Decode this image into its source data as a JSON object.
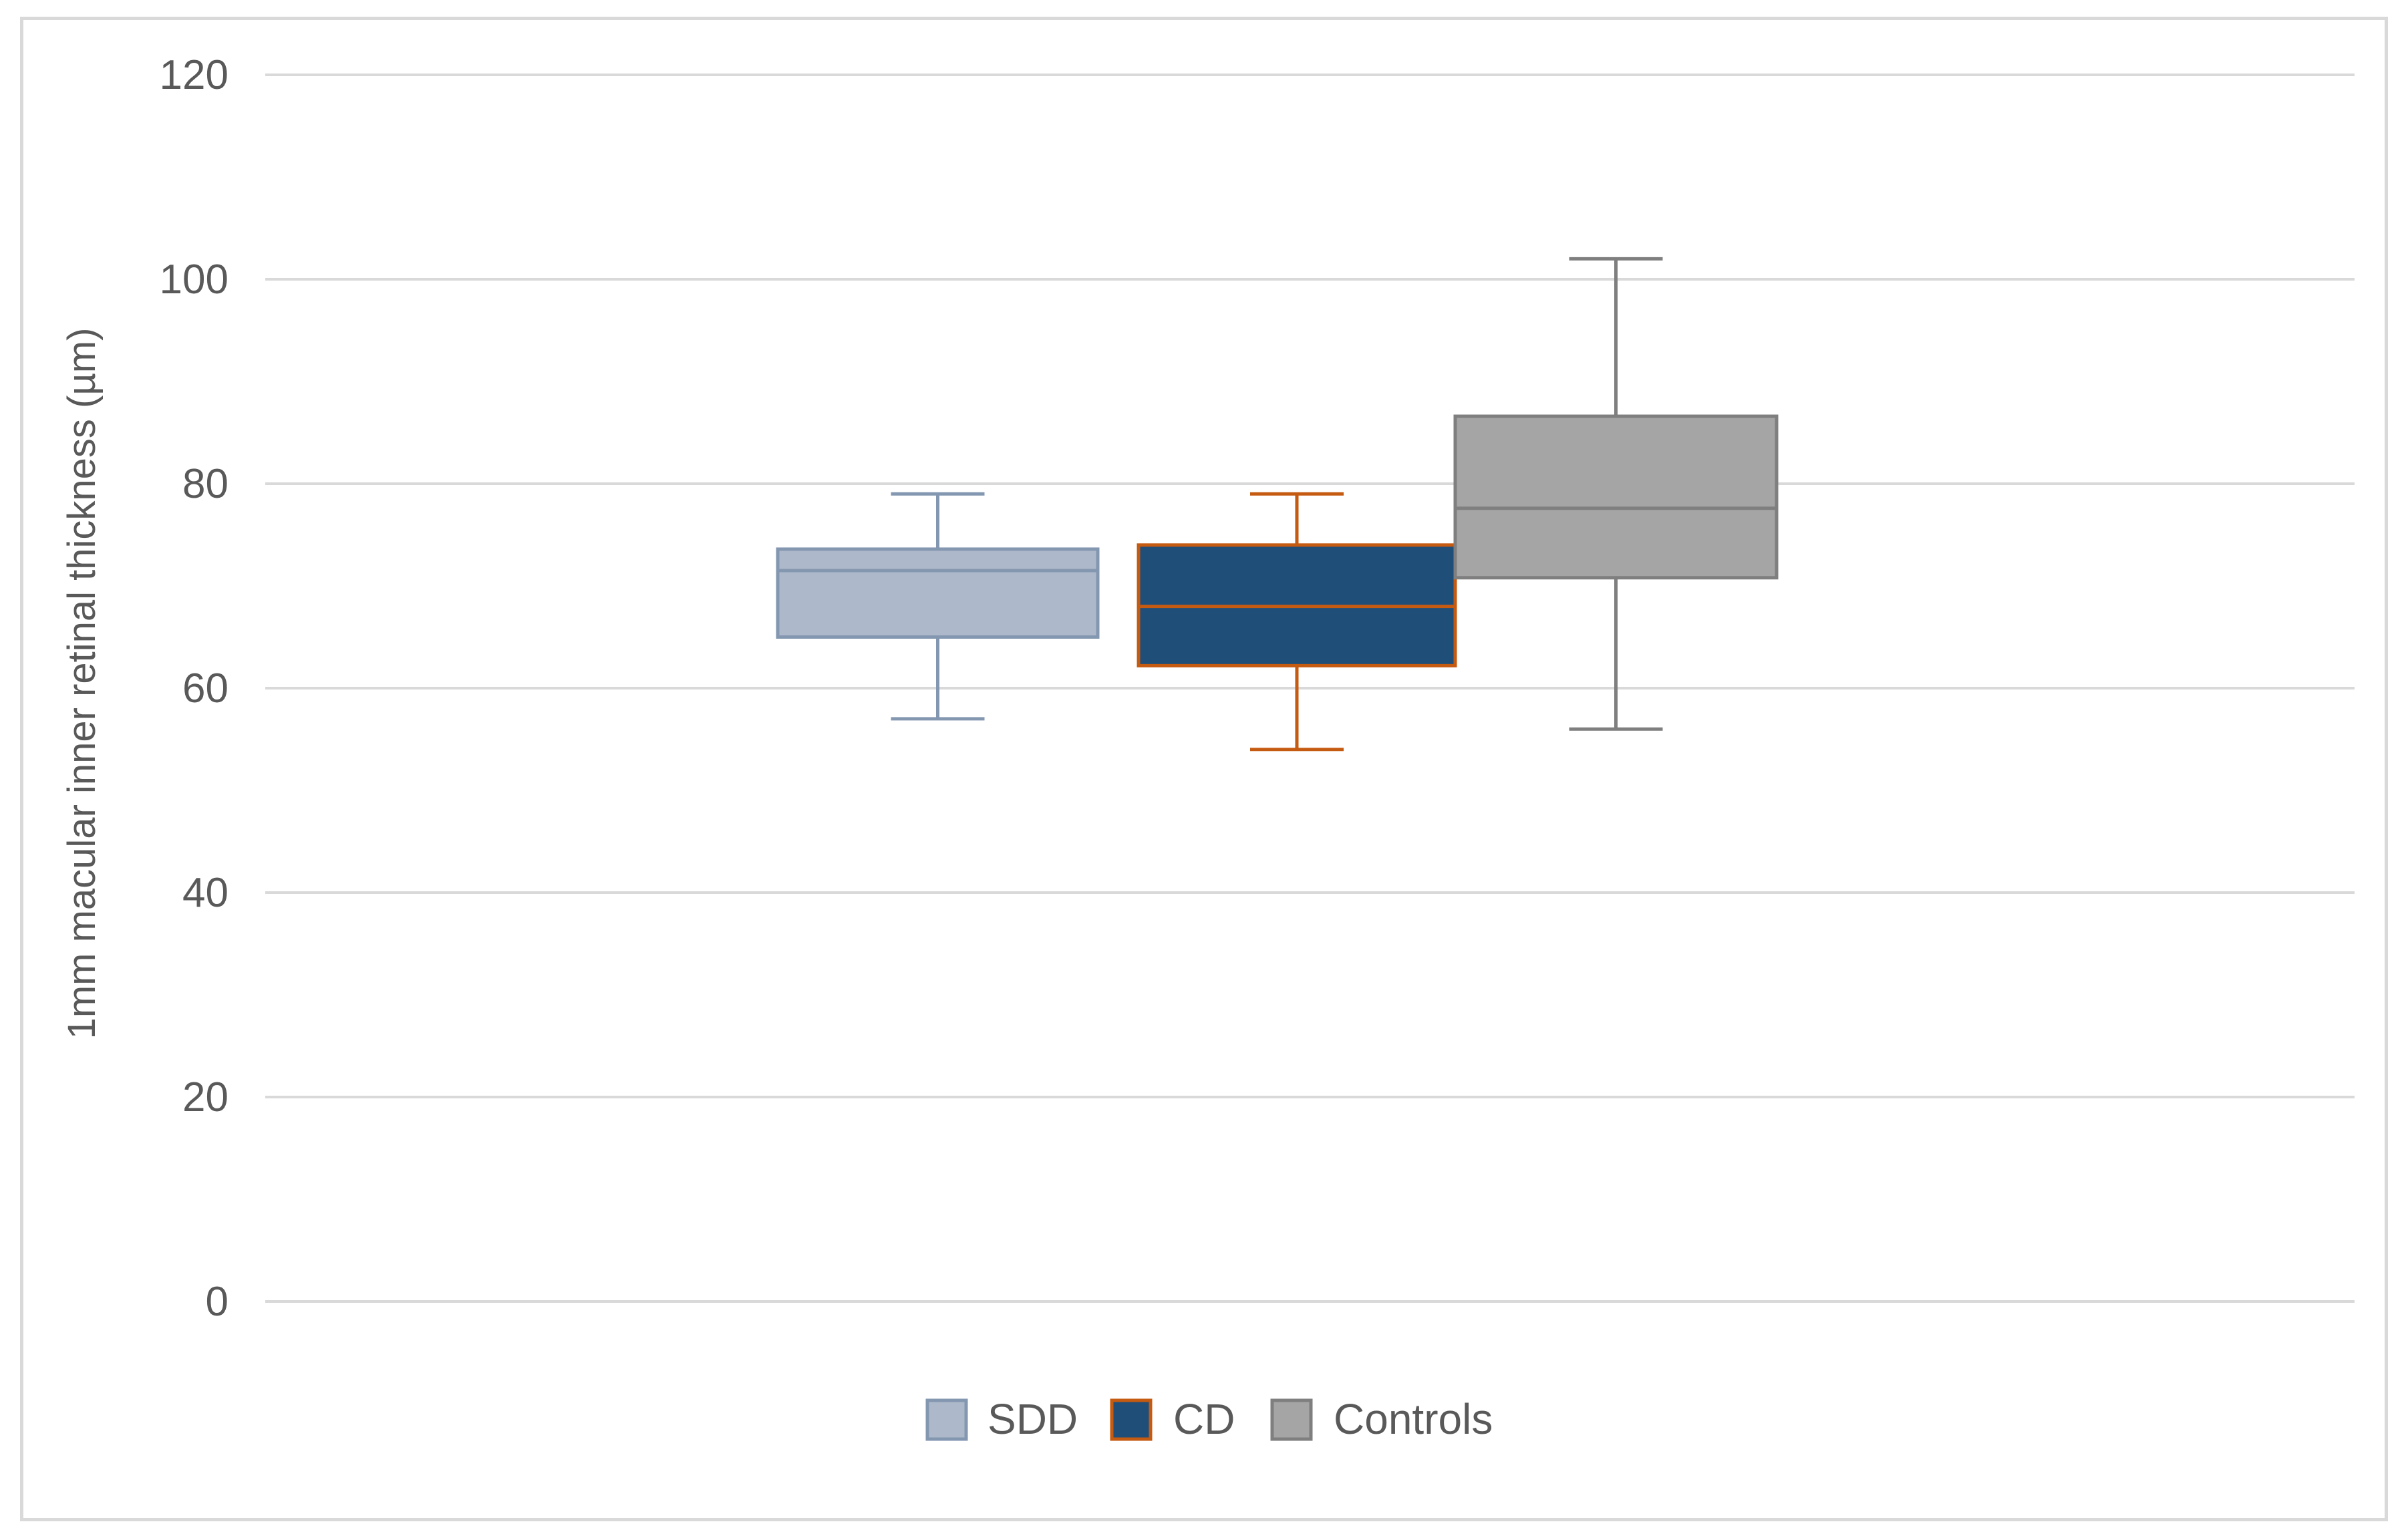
{
  "chart_data": {
    "type": "box",
    "title": "",
    "xlabel": "",
    "ylabel": "1mm macular inner retinal thickness (µm)",
    "ylim": [
      0,
      120
    ],
    "yticks": [
      0,
      20,
      40,
      60,
      80,
      100,
      120
    ],
    "grid": true,
    "legend_position": "bottom",
    "series": [
      {
        "name": "SDD",
        "min": 57,
        "q1": 65,
        "median": 71.5,
        "q3": 73.6,
        "max": 79,
        "fill": "#adb9ca",
        "stroke": "#8497b0",
        "whisker": "#8497b0"
      },
      {
        "name": "CD",
        "min": 54,
        "q1": 62.2,
        "median": 68,
        "q3": 74,
        "max": 79,
        "fill": "#1f4e79",
        "stroke": "#c55a11",
        "whisker": "#c55a11"
      },
      {
        "name": "Controls",
        "min": 56,
        "q1": 70.8,
        "median": 77.6,
        "q3": 86.6,
        "max": 102,
        "fill": "#a5a5a5",
        "stroke": "#7f7f7f",
        "whisker": "#7f7f7f"
      }
    ]
  }
}
